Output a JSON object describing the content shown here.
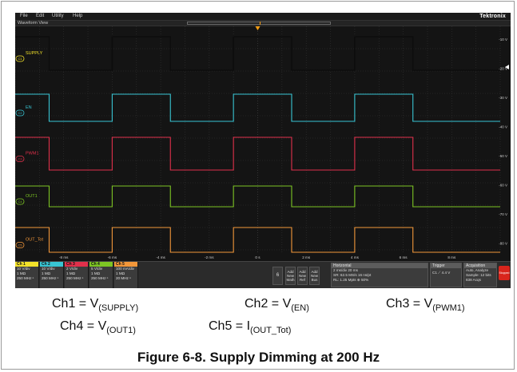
{
  "menu": [
    "File",
    "Edit",
    "Utility",
    "Help"
  ],
  "brand": "Tektronix",
  "waveform_view_title": "Waveform View",
  "channels": [
    {
      "id": "C1",
      "label": "SUPPLY",
      "color": "#f2e12a",
      "trace_color": "#111111",
      "high_level": 0.0,
      "low_level": 1.0
    },
    {
      "id": "C2",
      "label": "EN",
      "color": "#38c5d3",
      "trace_color": "#38c5d3",
      "high_level": 0.0,
      "low_level": 1.0
    },
    {
      "id": "C3",
      "label": "PWM1",
      "color": "#e0304b",
      "trace_color": "#e0304b",
      "high_level": 0.0,
      "low_level": 1.0
    },
    {
      "id": "C4",
      "label": "OUT1",
      "color": "#7dc524",
      "trace_color": "#7dc524",
      "high_level": 0.0,
      "low_level": 1.0
    },
    {
      "id": "C5",
      "label": "OUT_Tot",
      "color": "#f2973a",
      "trace_color": "#f2973a",
      "high_level": 0.0,
      "low_level": 1.0
    }
  ],
  "right_scale_labels": [
    "-10 V",
    "-20 V",
    "-30 V",
    "-40 V",
    "-50 V",
    "-60 V",
    "-70 V",
    "-80 V"
  ],
  "time_axis": [
    "-8 ms",
    "-6 ms",
    "-4 ms",
    "-2 ms",
    "0 s",
    "2 ms",
    "4 ms",
    "6 ms",
    "8 ms"
  ],
  "status": {
    "channels": [
      {
        "title": "Ch 1",
        "lines": [
          "10 V/div",
          "1 MΩ",
          "250 MHz ⁿ"
        ],
        "color": "#f2e12a"
      },
      {
        "title": "Ch 2",
        "lines": [
          "10 V/div",
          "1 MΩ",
          "250 MHz ⁿ"
        ],
        "color": "#38c5d3"
      },
      {
        "title": "Ch 3",
        "lines": [
          "2 V/div",
          "1 MΩ",
          "250 MHz ⁿ"
        ],
        "color": "#e0304b"
      },
      {
        "title": "Ch 4",
        "lines": [
          "5 V/div",
          "1 MΩ",
          "250 MHz ⁿ"
        ],
        "color": "#7dc524"
      },
      {
        "title": "Ch 5",
        "lines": [
          "100 mA/div",
          "1 MΩ",
          "20 MHz ⁿ"
        ],
        "color": "#f2973a"
      }
    ],
    "small_num": "6",
    "add_buttons": [
      "Add New Math",
      "Add New Ref",
      "Add New Bus"
    ],
    "horizontal": {
      "title": "Horizontal",
      "lines": [
        "2 ms/div     20 ms",
        "SR: 62.5 MS/s   16 ns/pt",
        "RL: 1.25 Mpts  ⊕ 50%"
      ]
    },
    "trigger": {
      "title": "Trigger",
      "lines": [
        "C1  ⟋  4.4 V"
      ]
    },
    "acquisition": {
      "title": "Acquisition",
      "lines": [
        "Auto,   Analyze",
        "Sample: 12 bits",
        "838 Acqs"
      ]
    },
    "stop_label": "Stopped"
  },
  "legend": {
    "ch1": {
      "prefix": "Ch1 = V",
      "sub": "(SUPPLY)"
    },
    "ch2": {
      "prefix": "Ch2 = V",
      "sub": "(EN)"
    },
    "ch3": {
      "prefix": "Ch3 = V",
      "sub": "(PWM1)"
    },
    "ch4": {
      "prefix": "Ch4 = V",
      "sub": "(OUT1)"
    },
    "ch5": {
      "prefix": "Ch5 = I",
      "sub": "(OUT_Tot)"
    }
  },
  "caption": "Figure 6-8. Supply Dimming at 200 Hz",
  "waveform": {
    "period_ms": 5,
    "duty": 0.5,
    "transitions_ms": [
      -8.6,
      -6.0,
      -3.6,
      -1.0,
      1.4,
      4.0,
      6.4
    ]
  }
}
